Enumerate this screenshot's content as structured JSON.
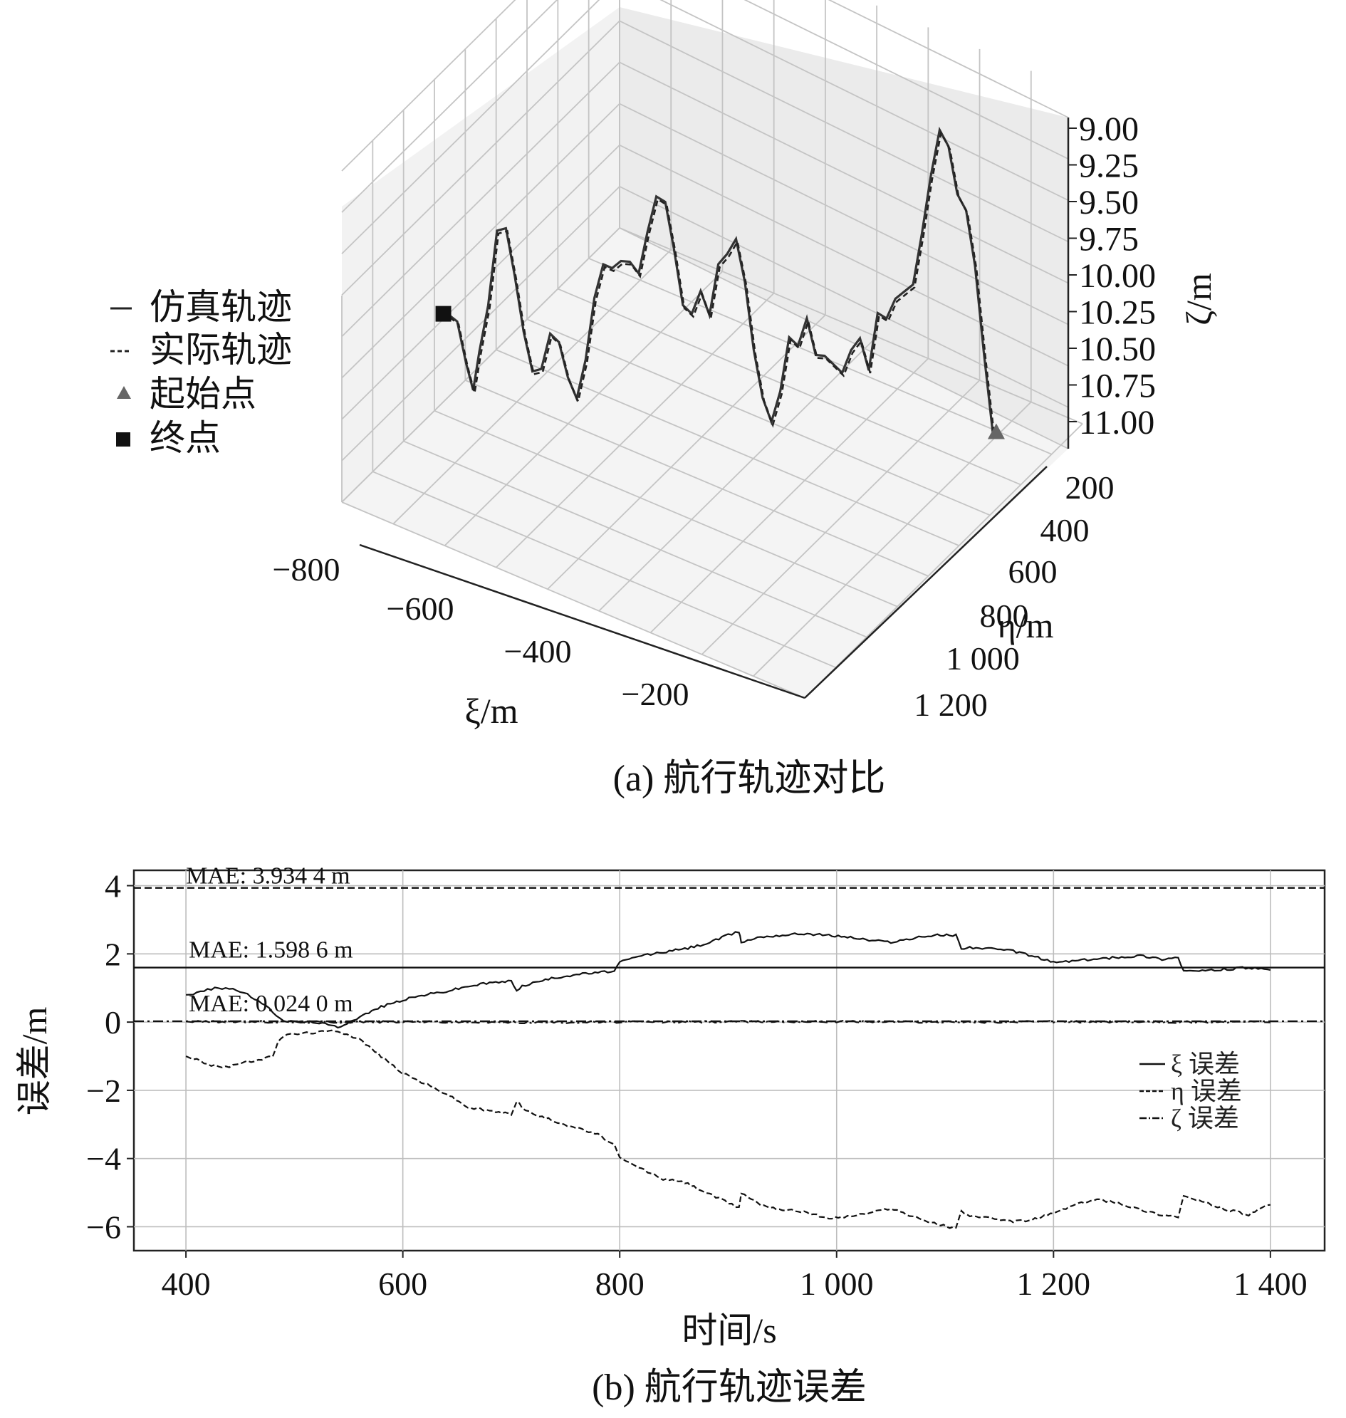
{
  "chart_data": [
    {
      "type": "line3d",
      "caption": "(a) 航行轨迹对比",
      "xlabel": "ξ/m",
      "ylabel": "η/m",
      "zlabel": "ζ/m",
      "xticks": [
        "−800",
        "−600",
        "−400",
        "−200"
      ],
      "yticks": [
        "200",
        "400",
        "600",
        "800",
        "1 000",
        "1 200"
      ],
      "zticks": [
        "9.00",
        "9.25",
        "9.50",
        "9.75",
        "10.00",
        "10.25",
        "10.50",
        "10.75",
        "11.00"
      ],
      "xlim": [
        -850,
        -150
      ],
      "ylim": [
        150,
        1250
      ],
      "zlim": [
        9.0,
        11.0
      ],
      "z_inverted": true,
      "grid": true,
      "legend": {
        "placement": "left",
        "entries": [
          {
            "label": "仿真轨迹",
            "style": "solid"
          },
          {
            "label": "实际轨迹",
            "style": "dashed"
          },
          {
            "label": "起始点",
            "marker": "triangle",
            "color": "#666666"
          },
          {
            "label": "终点",
            "marker": "square",
            "color": "#111111"
          }
        ]
      },
      "trajectory": {
        "note_units": "x: ξ (m), z: ζ (m)",
        "points": [
          [
            -790,
            10.48
          ],
          [
            -780,
            10.52
          ],
          [
            -770,
            10.78
          ],
          [
            -762,
            10.95
          ],
          [
            -755,
            10.7
          ],
          [
            -745,
            10.4
          ],
          [
            -735,
            9.92
          ],
          [
            -725,
            9.9
          ],
          [
            -715,
            10.2
          ],
          [
            -705,
            10.55
          ],
          [
            -695,
            10.8
          ],
          [
            -685,
            10.78
          ],
          [
            -675,
            10.55
          ],
          [
            -665,
            10.6
          ],
          [
            -655,
            10.82
          ],
          [
            -645,
            10.95
          ],
          [
            -635,
            10.7
          ],
          [
            -625,
            10.3
          ],
          [
            -615,
            10.08
          ],
          [
            -605,
            10.1
          ],
          [
            -595,
            10.05
          ],
          [
            -585,
            10.05
          ],
          [
            -575,
            10.12
          ],
          [
            -565,
            9.85
          ],
          [
            -555,
            9.62
          ],
          [
            -545,
            9.65
          ],
          [
            -535,
            9.95
          ],
          [
            -525,
            10.3
          ],
          [
            -515,
            10.35
          ],
          [
            -505,
            10.2
          ],
          [
            -495,
            10.35
          ],
          [
            -485,
            10.02
          ],
          [
            -475,
            9.95
          ],
          [
            -465,
            9.85
          ],
          [
            -455,
            10.12
          ],
          [
            -445,
            10.55
          ],
          [
            -435,
            10.85
          ],
          [
            -425,
            11.0
          ],
          [
            -415,
            10.8
          ],
          [
            -405,
            10.45
          ],
          [
            -395,
            10.5
          ],
          [
            -385,
            10.32
          ],
          [
            -375,
            10.55
          ],
          [
            -365,
            10.55
          ],
          [
            -355,
            10.6
          ],
          [
            -345,
            10.65
          ],
          [
            -335,
            10.5
          ],
          [
            -325,
            10.42
          ],
          [
            -315,
            10.62
          ],
          [
            -305,
            10.25
          ],
          [
            -295,
            10.28
          ],
          [
            -285,
            10.15
          ],
          [
            -275,
            10.1
          ],
          [
            -265,
            10.05
          ],
          [
            -255,
            9.72
          ],
          [
            -245,
            9.35
          ],
          [
            -235,
            9.05
          ],
          [
            -225,
            9.15
          ],
          [
            -215,
            9.45
          ],
          [
            -205,
            9.55
          ],
          [
            -195,
            9.9
          ],
          [
            -185,
            10.45
          ],
          [
            -175,
            10.95
          ]
        ],
        "start": [
          -175,
          10.95
        ],
        "end": [
          -790,
          10.48
        ]
      }
    },
    {
      "type": "line",
      "caption": "(b) 航行轨迹误差",
      "xlabel": "时间/s",
      "ylabel": "误差/m",
      "xticks": [
        "400",
        "600",
        "800",
        "1 000",
        "1 200",
        "1 400"
      ],
      "yticks": [
        "4",
        "2",
        "0",
        "−2",
        "−4",
        "−6"
      ],
      "xlim": [
        352,
        1450
      ],
      "ylim": [
        -6.7,
        4.45
      ],
      "grid": true,
      "legend": {
        "placement": "right",
        "entries": [
          {
            "label": "ξ 误差",
            "style": "solid"
          },
          {
            "label": "η 误差",
            "style": "dashed"
          },
          {
            "label": "ζ 误差",
            "style": "dashdot"
          }
        ]
      },
      "mae_lines": [
        {
          "label": "MAE: 3.934 4 m",
          "value": 3.9344,
          "style": "dashed"
        },
        {
          "label": "MAE: 1.598 6 m",
          "value": 1.5986,
          "style": "solid"
        },
        {
          "label": "MAE: 0.024 0 m",
          "value": 0.024,
          "style": "dashdot"
        }
      ],
      "series": [
        {
          "name": "ξ 误差",
          "style": "solid",
          "x": [
            400,
            410,
            420,
            430,
            440,
            450,
            460,
            470,
            480,
            490,
            500,
            520,
            540,
            560,
            580,
            600,
            620,
            640,
            660,
            680,
            700,
            705,
            710,
            720,
            740,
            760,
            780,
            795,
            800,
            820,
            840,
            860,
            880,
            900,
            910,
            912,
            930,
            950,
            970,
            990,
            1010,
            1030,
            1050,
            1070,
            1090,
            1110,
            1115,
            1120,
            1140,
            1160,
            1180,
            1200,
            1220,
            1240,
            1260,
            1280,
            1300,
            1315,
            1320,
            1340,
            1360,
            1380,
            1400
          ],
          "y": [
            0.8,
            0.85,
            0.95,
            1.0,
            1.0,
            0.9,
            0.75,
            0.55,
            0.3,
            0.05,
            0.0,
            0.0,
            -0.15,
            0.15,
            0.45,
            0.65,
            0.8,
            0.9,
            1.05,
            1.15,
            1.2,
            0.95,
            1.05,
            1.15,
            1.3,
            1.4,
            1.45,
            1.5,
            1.75,
            1.95,
            2.05,
            2.15,
            2.3,
            2.55,
            2.65,
            2.35,
            2.5,
            2.55,
            2.6,
            2.55,
            2.5,
            2.4,
            2.35,
            2.45,
            2.55,
            2.55,
            2.15,
            2.2,
            2.15,
            2.1,
            1.95,
            1.75,
            1.8,
            1.85,
            1.9,
            1.95,
            1.85,
            1.9,
            1.5,
            1.5,
            1.55,
            1.6,
            1.5
          ]
        },
        {
          "name": "η 误差",
          "style": "dashed",
          "x": [
            400,
            410,
            420,
            430,
            440,
            450,
            460,
            470,
            480,
            485,
            490,
            500,
            520,
            540,
            560,
            580,
            600,
            620,
            640,
            660,
            680,
            700,
            705,
            710,
            720,
            740,
            760,
            780,
            795,
            800,
            820,
            840,
            860,
            880,
            900,
            910,
            912,
            930,
            950,
            970,
            990,
            1010,
            1030,
            1050,
            1070,
            1090,
            1110,
            1115,
            1120,
            1140,
            1160,
            1180,
            1200,
            1220,
            1240,
            1260,
            1280,
            1300,
            1315,
            1320,
            1340,
            1360,
            1380,
            1400
          ],
          "y": [
            -1.0,
            -1.1,
            -1.25,
            -1.3,
            -1.3,
            -1.2,
            -1.15,
            -1.1,
            -1.0,
            -0.55,
            -0.4,
            -0.35,
            -0.3,
            -0.25,
            -0.5,
            -1.0,
            -1.5,
            -1.8,
            -2.1,
            -2.5,
            -2.6,
            -2.7,
            -2.3,
            -2.5,
            -2.7,
            -2.9,
            -3.1,
            -3.3,
            -3.6,
            -4.0,
            -4.3,
            -4.6,
            -4.7,
            -5.0,
            -5.3,
            -5.45,
            -5.0,
            -5.35,
            -5.5,
            -5.55,
            -5.75,
            -5.7,
            -5.6,
            -5.45,
            -5.7,
            -5.9,
            -6.05,
            -5.5,
            -5.65,
            -5.75,
            -5.85,
            -5.8,
            -5.6,
            -5.35,
            -5.2,
            -5.3,
            -5.5,
            -5.65,
            -5.7,
            -5.1,
            -5.3,
            -5.5,
            -5.65,
            -5.35
          ]
        },
        {
          "name": "ζ 误差",
          "style": "dashdot",
          "x": [
            400,
            500,
            600,
            700,
            800,
            900,
            1000,
            1100,
            1200,
            1300,
            1400
          ],
          "y": [
            0.02,
            0.0,
            0.01,
            -0.01,
            0.0,
            0.01,
            0.02,
            0.0,
            0.01,
            0.0,
            0.01
          ]
        }
      ]
    }
  ]
}
